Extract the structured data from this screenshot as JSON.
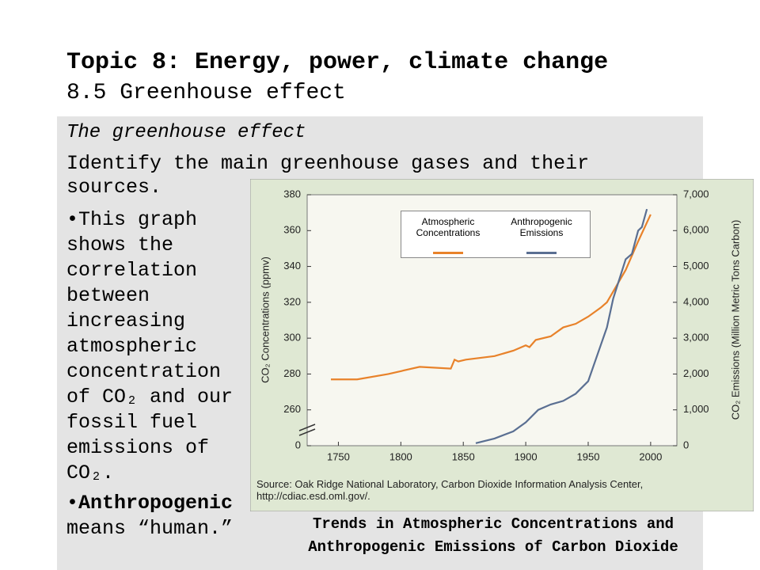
{
  "slide": {
    "title": "Topic 8: Energy, power, climate change",
    "subtitle": "8.5 Greenhouse effect",
    "heading": "The greenhouse effect",
    "objective": "Identify the main greenhouse gases and their sources.",
    "bullets": [
      {
        "text": "This graph shows the correlation between increasing atmospheric concentration of CO₂ and our fossil fuel emissions of CO₂."
      },
      {
        "bold": "Anthropogenic",
        "text": "means “human.”"
      }
    ],
    "caption": "Trends in Atmospheric Concentrations and Anthropogenic Emissions of Carbon Dioxide"
  },
  "chart_data": {
    "type": "line",
    "ylabel": "CO₂ Concentrations (ppmv)",
    "y2label": "CO₂ Emissions (Million Metric Tons Carbon)",
    "source": "Source: Oak Ridge National Laboratory, Carbon Dioxide Information Analysis Center, http://cdiac.esd.oml.gov/.",
    "xlim": [
      1725,
      2021
    ],
    "xticks": [
      1750,
      1800,
      1850,
      1900,
      1950,
      2000
    ],
    "ylim": [
      0,
      380
    ],
    "y_break": [
      0,
      260
    ],
    "yticks": [
      0,
      260,
      280,
      300,
      320,
      340,
      360,
      380
    ],
    "y2lim": [
      0,
      7000
    ],
    "y2ticks": [
      0,
      {
        "value": 1000,
        "label": "1,000"
      },
      {
        "value": 2000,
        "label": "2,000"
      },
      {
        "value": 3000,
        "label": "3,000"
      },
      {
        "value": 4000,
        "label": "4,000"
      },
      {
        "value": 5000,
        "label": "5,000"
      },
      {
        "value": 6000,
        "label": "6,000"
      },
      {
        "value": 7000,
        "label": "7,000"
      }
    ],
    "series": [
      {
        "name": "Atmospheric Concentrations",
        "color": "#e8822a",
        "x": [
          1744,
          1765,
          1790,
          1815,
          1840,
          1843,
          1846,
          1852,
          1875,
          1890,
          1900,
          1903,
          1908,
          1920,
          1930,
          1940,
          1950,
          1960,
          1965,
          1970,
          1980,
          1990,
          2000
        ],
        "values": [
          277,
          277,
          280,
          284,
          283,
          288,
          287,
          288,
          290,
          293,
          296,
          295,
          299,
          301,
          306,
          308,
          312,
          317,
          320,
          326,
          338,
          354,
          369
        ]
      },
      {
        "name": "Anthropogenic Emissions",
        "color": "#5a6f92",
        "axis": "y2",
        "x": [
          1860,
          1875,
          1890,
          1900,
          1910,
          1920,
          1930,
          1940,
          1950,
          1960,
          1965,
          1970,
          1980,
          1985,
          1990,
          1993,
          1997
        ],
        "values": [
          70,
          200,
          400,
          650,
          1000,
          1150,
          1250,
          1450,
          1800,
          2800,
          3300,
          4100,
          5200,
          5350,
          6000,
          6100,
          6600
        ]
      }
    ]
  }
}
